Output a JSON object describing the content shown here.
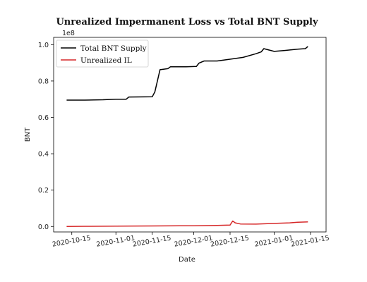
{
  "chart_data": {
    "type": "line",
    "title": "Unrealized Impermanent Loss vs Total BNT Supply",
    "xlabel": "Date",
    "ylabel": "BNT",
    "y_offset_label": "1e8",
    "ylim": [
      -0.03,
      1.04
    ],
    "xlim": [
      "2020-10-08",
      "2021-01-21"
    ],
    "x_ticks": [
      "2020-10-15",
      "2020-11-01",
      "2020-11-15",
      "2020-12-01",
      "2020-12-15",
      "2021-01-01",
      "2021-01-15"
    ],
    "y_ticks": [
      0.0,
      0.2,
      0.4,
      0.6,
      0.8,
      1.0
    ],
    "y_tick_labels": [
      "0.0",
      "0.2",
      "0.4",
      "0.6",
      "0.8",
      "1.0"
    ],
    "legend_position": "top-left",
    "colors": {
      "Total BNT Supply": "#000000",
      "Unrealized IL": "#d62728"
    },
    "series": [
      {
        "name": "Total BNT Supply",
        "color": "#000000",
        "points": [
          [
            "2020-10-13",
            0.695
          ],
          [
            "2020-10-20",
            0.695
          ],
          [
            "2020-10-27",
            0.697
          ],
          [
            "2020-11-01",
            0.7
          ],
          [
            "2020-11-05",
            0.7
          ],
          [
            "2020-11-06",
            0.712
          ],
          [
            "2020-11-15",
            0.713
          ],
          [
            "2020-11-16",
            0.74
          ],
          [
            "2020-11-17",
            0.8
          ],
          [
            "2020-11-18",
            0.862
          ],
          [
            "2020-11-21",
            0.868
          ],
          [
            "2020-11-22",
            0.878
          ],
          [
            "2020-11-28",
            0.878
          ],
          [
            "2020-12-02",
            0.88
          ],
          [
            "2020-12-03",
            0.898
          ],
          [
            "2020-12-05",
            0.91
          ],
          [
            "2020-12-10",
            0.91
          ],
          [
            "2020-12-14",
            0.918
          ],
          [
            "2020-12-20",
            0.93
          ],
          [
            "2020-12-25",
            0.95
          ],
          [
            "2020-12-27",
            0.96
          ],
          [
            "2020-12-28",
            0.978
          ],
          [
            "2021-01-01",
            0.963
          ],
          [
            "2021-01-05",
            0.968
          ],
          [
            "2021-01-10",
            0.975
          ],
          [
            "2021-01-13",
            0.978
          ],
          [
            "2021-01-14",
            0.99
          ]
        ]
      },
      {
        "name": "Unrealized IL",
        "color": "#d62728",
        "points": [
          [
            "2020-10-13",
            0.0
          ],
          [
            "2020-10-20",
            0.001
          ],
          [
            "2020-11-01",
            0.002
          ],
          [
            "2020-11-15",
            0.003
          ],
          [
            "2020-12-01",
            0.004
          ],
          [
            "2020-12-10",
            0.006
          ],
          [
            "2020-12-15",
            0.008
          ],
          [
            "2020-12-16",
            0.03
          ],
          [
            "2020-12-17",
            0.02
          ],
          [
            "2020-12-19",
            0.014
          ],
          [
            "2020-12-25",
            0.013
          ],
          [
            "2021-01-01",
            0.017
          ],
          [
            "2021-01-07",
            0.02
          ],
          [
            "2021-01-10",
            0.023
          ],
          [
            "2021-01-14",
            0.025
          ]
        ]
      }
    ]
  }
}
